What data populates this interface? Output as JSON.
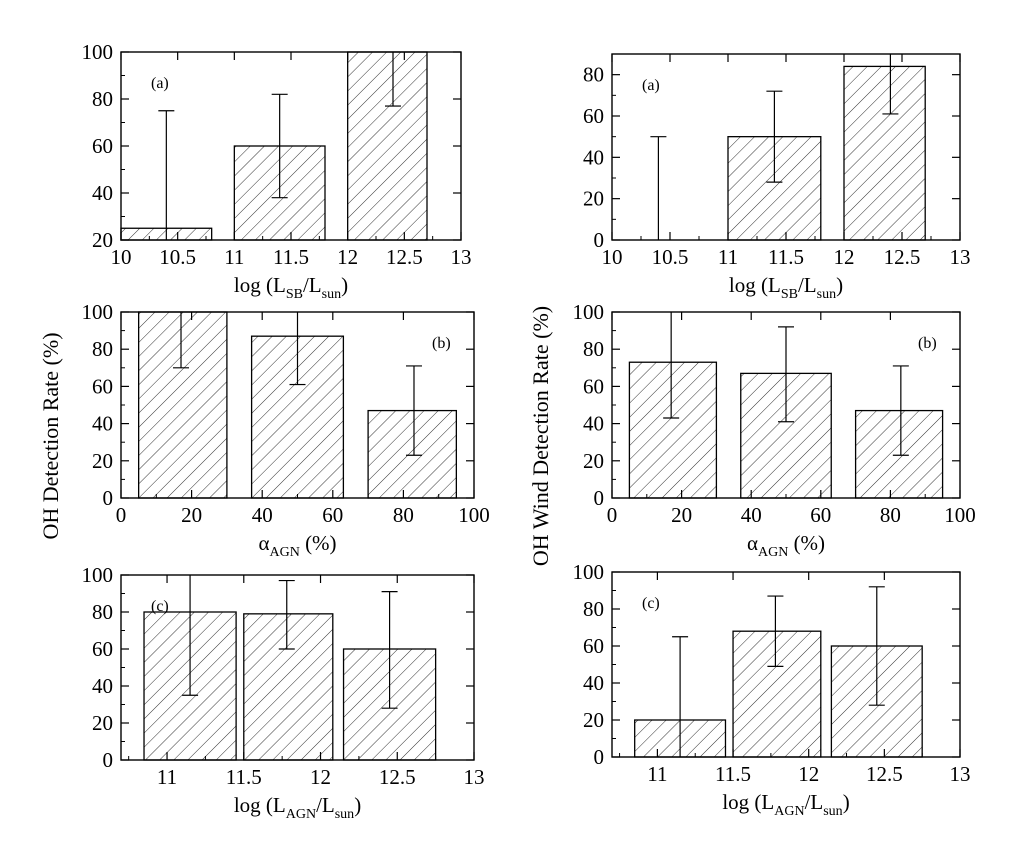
{
  "figure": {
    "left_ylabel": "OH Detection Rate  (%)",
    "right_ylabel": "OH Wind Detection Rate  (%)"
  },
  "chart_data": [
    {
      "id": "L-a",
      "type": "bar",
      "panel_label": "(a)",
      "xlabel": {
        "base": "log (L",
        "sub1": "SB",
        "mid": "/L",
        "sub2": "sun",
        "tail": ")"
      },
      "xlim": [
        10,
        13
      ],
      "ylim": [
        20,
        100
      ],
      "xticks": [
        10,
        10.5,
        11,
        11.5,
        12,
        12.5,
        13
      ],
      "yticks": [
        20,
        40,
        60,
        80,
        100
      ],
      "bars": [
        {
          "x0": 10,
          "x1": 10.8,
          "value": 25,
          "err_x": 10.4,
          "err_low": 20,
          "err_high": 75
        },
        {
          "x0": 11,
          "x1": 11.8,
          "value": 60,
          "err_x": 11.4,
          "err_low": 38,
          "err_high": 82
        },
        {
          "x0": 12,
          "x1": 12.7,
          "value": 100,
          "err_x": 12.4,
          "err_low": 77,
          "err_high": 100
        }
      ]
    },
    {
      "id": "L-b",
      "type": "bar",
      "panel_label": "(b)",
      "xlabel": {
        "base": "α",
        "sub1": "AGN",
        "tail": " (%)"
      },
      "xlim": [
        0,
        100
      ],
      "ylim": [
        0,
        100
      ],
      "xticks": [
        0,
        20,
        40,
        60,
        80,
        100
      ],
      "yticks": [
        0,
        20,
        40,
        60,
        80,
        100
      ],
      "bars": [
        {
          "x0": 5,
          "x1": 30,
          "value": 100,
          "err_x": 17,
          "err_low": 70,
          "err_high": 100
        },
        {
          "x0": 37,
          "x1": 63,
          "value": 87,
          "err_x": 50,
          "err_low": 61,
          "err_high": 100
        },
        {
          "x0": 70,
          "x1": 95,
          "value": 47,
          "err_x": 83,
          "err_low": 23,
          "err_high": 71
        }
      ]
    },
    {
      "id": "L-c",
      "type": "bar",
      "panel_label": "(c)",
      "xlabel": {
        "base": "log (L",
        "sub1": "AGN",
        "mid": "/L",
        "sub2": "sun",
        "tail": ")"
      },
      "xlim": [
        10.7,
        13
      ],
      "ylim": [
        0,
        100
      ],
      "xticks": [
        11,
        11.5,
        12,
        12.5,
        13
      ],
      "yticks": [
        0,
        20,
        40,
        60,
        80,
        100
      ],
      "bars": [
        {
          "x0": 10.85,
          "x1": 11.45,
          "value": 80,
          "err_x": 11.15,
          "err_low": 35,
          "err_high": 100
        },
        {
          "x0": 11.5,
          "x1": 12.08,
          "value": 79,
          "err_x": 11.78,
          "err_low": 60,
          "err_high": 97
        },
        {
          "x0": 12.15,
          "x1": 12.75,
          "value": 60,
          "err_x": 12.45,
          "err_low": 28,
          "err_high": 91
        }
      ]
    },
    {
      "id": "R-a",
      "type": "bar",
      "panel_label": "(a)",
      "xlabel": {
        "base": "log (L",
        "sub1": "SB",
        "mid": "/L",
        "sub2": "sun",
        "tail": ")"
      },
      "xlim": [
        10,
        13
      ],
      "ylim": [
        0,
        90
      ],
      "xticks": [
        10,
        10.5,
        11,
        11.5,
        12,
        12.5,
        13
      ],
      "yticks": [
        0,
        20,
        40,
        60,
        80
      ],
      "bars": [
        {
          "x0": 10,
          "x1": 10.8,
          "value": 0,
          "err_x": 10.4,
          "err_low": 0,
          "err_high": 50
        },
        {
          "x0": 11,
          "x1": 11.8,
          "value": 50,
          "err_x": 11.4,
          "err_low": 28,
          "err_high": 72
        },
        {
          "x0": 12,
          "x1": 12.7,
          "value": 84,
          "err_x": 12.4,
          "err_low": 61,
          "err_high": 90
        }
      ]
    },
    {
      "id": "R-b",
      "type": "bar",
      "panel_label": "(b)",
      "xlabel": {
        "base": "α",
        "sub1": "AGN",
        "tail": " (%)"
      },
      "xlim": [
        0,
        100
      ],
      "ylim": [
        0,
        100
      ],
      "xticks": [
        0,
        20,
        40,
        60,
        80,
        100
      ],
      "yticks": [
        0,
        20,
        40,
        60,
        80,
        100
      ],
      "bars": [
        {
          "x0": 5,
          "x1": 30,
          "value": 73,
          "err_x": 17,
          "err_low": 43,
          "err_high": 100
        },
        {
          "x0": 37,
          "x1": 63,
          "value": 67,
          "err_x": 50,
          "err_low": 41,
          "err_high": 92
        },
        {
          "x0": 70,
          "x1": 95,
          "value": 47,
          "err_x": 83,
          "err_low": 23,
          "err_high": 71
        }
      ]
    },
    {
      "id": "R-c",
      "type": "bar",
      "panel_label": "(c)",
      "xlabel": {
        "base": "log (L",
        "sub1": "AGN",
        "mid": "/L",
        "sub2": "sun",
        "tail": ")"
      },
      "xlim": [
        10.7,
        13
      ],
      "ylim": [
        0,
        100
      ],
      "xticks": [
        11,
        11.5,
        12,
        12.5,
        13
      ],
      "yticks": [
        0,
        20,
        40,
        60,
        80,
        100
      ],
      "bars": [
        {
          "x0": 10.85,
          "x1": 11.45,
          "value": 20,
          "err_x": 11.15,
          "err_low": 0,
          "err_high": 65
        },
        {
          "x0": 11.5,
          "x1": 12.08,
          "value": 68,
          "err_x": 11.78,
          "err_low": 49,
          "err_high": 87
        },
        {
          "x0": 12.15,
          "x1": 12.75,
          "value": 60,
          "err_x": 12.45,
          "err_low": 28,
          "err_high": 92
        }
      ]
    }
  ]
}
